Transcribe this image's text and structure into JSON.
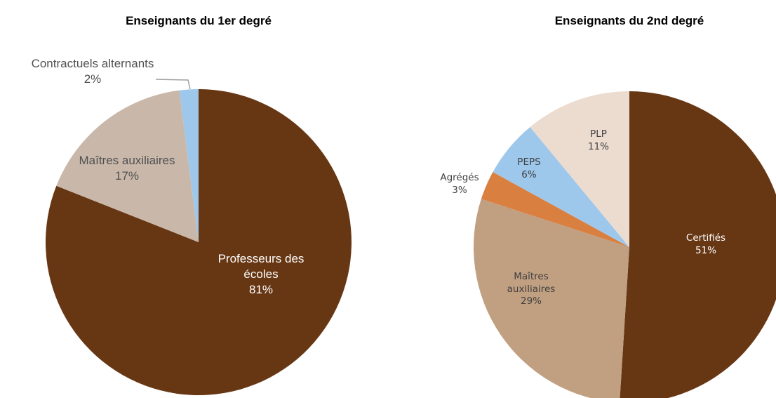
{
  "chart_data": [
    {
      "type": "pie",
      "title": "Enseignants du 1er degré",
      "categories": [
        "Professeurs des écoles",
        "Maîtres auxiliaires",
        "Contractuels alternants"
      ],
      "values": [
        81,
        17,
        2
      ],
      "value_labels": [
        "81%",
        "17%",
        "2%"
      ],
      "colors": [
        "#673714",
        "#c9b8aa",
        "#9dc8ec"
      ]
    },
    {
      "type": "pie",
      "title": "Enseignants du 2nd degré",
      "categories": [
        "Certifiés",
        "Maîtres auxiliaires",
        "Agrégés",
        "PEPS",
        "PLP"
      ],
      "values": [
        51,
        29,
        3,
        6,
        11
      ],
      "value_labels": [
        "51%",
        "29%",
        "3%",
        "6%",
        "11%"
      ],
      "colors": [
        "#673714",
        "#c19f81",
        "#d98040",
        "#9dc8ec",
        "#ecdcd0"
      ]
    }
  ]
}
